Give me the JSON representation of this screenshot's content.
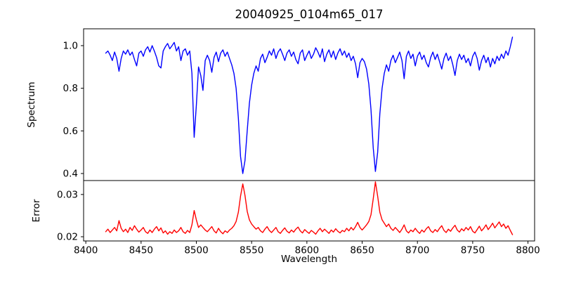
{
  "figure": {
    "background": "#ffffff",
    "text_color": "#000000"
  },
  "chart_data": [
    {
      "type": "line",
      "panel": "top",
      "title": "20040925_0104m65_017",
      "ylabel": "Spectrum",
      "xlabel": "",
      "xlim": [
        8398,
        8806
      ],
      "ylim": [
        0.367,
        1.079
      ],
      "grid": false,
      "legend": "none",
      "yticks": {
        "values": [
          0.4,
          0.6,
          0.8,
          1.0
        ],
        "labels": [
          "0.4",
          "0.6",
          "0.8",
          "1.0"
        ]
      },
      "series": {
        "name": "spectrum",
        "color": "#0000ff",
        "x_start": 8418,
        "x_step": 2,
        "values": [
          0.965,
          0.975,
          0.955,
          0.93,
          0.97,
          0.94,
          0.88,
          0.94,
          0.975,
          0.96,
          0.98,
          0.955,
          0.97,
          0.935,
          0.905,
          0.965,
          0.975,
          0.95,
          0.98,
          0.995,
          0.97,
          1.0,
          0.975,
          0.945,
          0.905,
          0.895,
          0.975,
          0.995,
          1.01,
          0.985,
          1.0,
          1.015,
          0.975,
          0.995,
          0.93,
          0.975,
          0.985,
          0.955,
          0.975,
          0.87,
          0.57,
          0.72,
          0.9,
          0.86,
          0.79,
          0.93,
          0.955,
          0.93,
          0.875,
          0.945,
          0.97,
          0.925,
          0.965,
          0.98,
          0.95,
          0.97,
          0.94,
          0.91,
          0.87,
          0.8,
          0.66,
          0.48,
          0.4,
          0.46,
          0.6,
          0.73,
          0.815,
          0.87,
          0.905,
          0.88,
          0.94,
          0.96,
          0.92,
          0.945,
          0.975,
          0.955,
          0.985,
          0.94,
          0.97,
          0.985,
          0.96,
          0.93,
          0.965,
          0.98,
          0.95,
          0.97,
          0.935,
          0.915,
          0.965,
          0.98,
          0.93,
          0.955,
          0.975,
          0.94,
          0.96,
          0.99,
          0.97,
          0.945,
          0.985,
          0.925,
          0.96,
          0.98,
          0.945,
          0.975,
          0.935,
          0.965,
          0.985,
          0.955,
          0.975,
          0.945,
          0.965,
          0.93,
          0.95,
          0.915,
          0.85,
          0.92,
          0.94,
          0.925,
          0.89,
          0.82,
          0.7,
          0.52,
          0.41,
          0.5,
          0.68,
          0.8,
          0.87,
          0.91,
          0.88,
          0.93,
          0.955,
          0.92,
          0.945,
          0.97,
          0.93,
          0.845,
          0.95,
          0.975,
          0.94,
          0.96,
          0.905,
          0.95,
          0.97,
          0.935,
          0.955,
          0.92,
          0.9,
          0.945,
          0.97,
          0.935,
          0.96,
          0.925,
          0.89,
          0.94,
          0.965,
          0.93,
          0.95,
          0.91,
          0.86,
          0.93,
          0.96,
          0.935,
          0.955,
          0.92,
          0.94,
          0.905,
          0.95,
          0.97,
          0.94,
          0.885,
          0.93,
          0.955,
          0.92,
          0.945,
          0.9,
          0.94,
          0.915,
          0.95,
          0.93,
          0.96,
          0.94,
          0.975,
          0.955,
          0.995,
          1.04
        ]
      },
      "absorption_lines": [
        {
          "wavelength": 8498,
          "core_depth": 0.57
        },
        {
          "wavelength": 8542,
          "core_depth": 0.4
        },
        {
          "wavelength": 8662,
          "core_depth": 0.41
        }
      ]
    },
    {
      "type": "line",
      "panel": "bottom",
      "title": "",
      "ylabel": "Error",
      "xlabel": "Wavelength",
      "xlim": [
        8398,
        8806
      ],
      "ylim": [
        0.019,
        0.0333
      ],
      "grid": false,
      "legend": "none",
      "yticks": {
        "values": [
          0.02,
          0.03
        ],
        "labels": [
          "0.02",
          "0.03"
        ]
      },
      "xticks": {
        "values": [
          8400,
          8450,
          8500,
          8550,
          8600,
          8650,
          8700,
          8750,
          8800
        ],
        "labels": [
          "8400",
          "8450",
          "8500",
          "8550",
          "8600",
          "8650",
          "8700",
          "8750",
          "8800"
        ]
      },
      "series": {
        "name": "error",
        "color": "#ff0000",
        "x_start": 8418,
        "x_step": 2,
        "values": [
          0.0212,
          0.0218,
          0.021,
          0.0216,
          0.0222,
          0.0214,
          0.0238,
          0.022,
          0.0212,
          0.0218,
          0.021,
          0.0222,
          0.0215,
          0.0226,
          0.0218,
          0.0211,
          0.0216,
          0.0222,
          0.0212,
          0.0208,
          0.0216,
          0.021,
          0.0218,
          0.0224,
          0.0214,
          0.0221,
          0.0209,
          0.0214,
          0.0206,
          0.0212,
          0.0208,
          0.0216,
          0.021,
          0.0214,
          0.0222,
          0.0212,
          0.0208,
          0.0215,
          0.021,
          0.0228,
          0.0262,
          0.024,
          0.0222,
          0.0228,
          0.0222,
          0.0216,
          0.0212,
          0.0218,
          0.0224,
          0.0214,
          0.0209,
          0.022,
          0.0212,
          0.0207,
          0.0214,
          0.021,
          0.0216,
          0.022,
          0.0226,
          0.0236,
          0.0258,
          0.0296,
          0.0325,
          0.0298,
          0.026,
          0.024,
          0.023,
          0.0224,
          0.0218,
          0.0222,
          0.0214,
          0.021,
          0.0218,
          0.0224,
          0.0215,
          0.021,
          0.0216,
          0.0222,
          0.0212,
          0.0208,
          0.0215,
          0.0221,
          0.0213,
          0.0209,
          0.0216,
          0.0211,
          0.0218,
          0.0223,
          0.0214,
          0.0209,
          0.0217,
          0.0212,
          0.0208,
          0.0215,
          0.0211,
          0.0206,
          0.0214,
          0.022,
          0.0212,
          0.0218,
          0.0213,
          0.0208,
          0.0216,
          0.0211,
          0.0219,
          0.0213,
          0.0209,
          0.0215,
          0.0212,
          0.022,
          0.0214,
          0.0222,
          0.0216,
          0.0224,
          0.0234,
          0.0222,
          0.0216,
          0.0222,
          0.0228,
          0.0236,
          0.0252,
          0.029,
          0.033,
          0.0296,
          0.0258,
          0.024,
          0.0232,
          0.0224,
          0.023,
          0.022,
          0.0215,
          0.0222,
          0.0216,
          0.021,
          0.0218,
          0.0228,
          0.0214,
          0.0209,
          0.0216,
          0.0212,
          0.022,
          0.0213,
          0.0208,
          0.0216,
          0.0211,
          0.0219,
          0.0224,
          0.0214,
          0.021,
          0.0217,
          0.0212,
          0.022,
          0.0226,
          0.0215,
          0.021,
          0.0218,
          0.0213,
          0.0221,
          0.0227,
          0.0216,
          0.0211,
          0.0219,
          0.0214,
          0.0222,
          0.0216,
          0.0224,
          0.0213,
          0.0209,
          0.0217,
          0.0225,
          0.0214,
          0.022,
          0.0228,
          0.0217,
          0.0224,
          0.0232,
          0.0221,
          0.0228,
          0.0235,
          0.0224,
          0.023,
          0.022,
          0.0226,
          0.0215,
          0.0205
        ]
      }
    }
  ]
}
